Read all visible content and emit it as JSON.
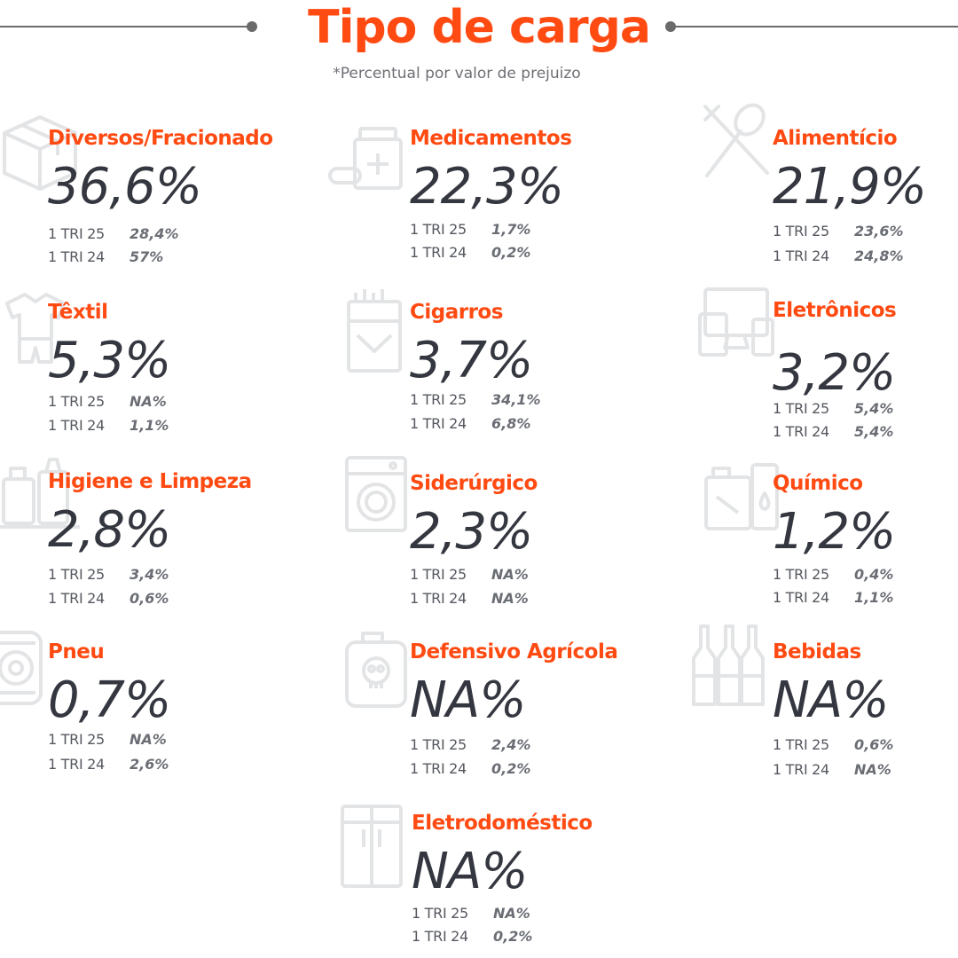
{
  "header": {
    "title": "Tipo de carga",
    "subtitle": "*Percentual por valor de prejuizo"
  },
  "colors": {
    "accent": "#ff4a12",
    "value": "#34373f",
    "muted": "#6d6f75",
    "icon": "#e3e4e6"
  },
  "categories": [
    {
      "name": "Diversos/Fracionado",
      "value": "36,6%",
      "row1_label": "1 TRI 25",
      "row1_value": "28,4%",
      "row2_label": "1 TRI 24",
      "row2_value": "57%",
      "icon": "box-icon"
    },
    {
      "name": "Medicamentos",
      "value": "22,3%",
      "row1_label": "1 TRI 25",
      "row1_value": "1,7%",
      "row2_label": "1 TRI 24",
      "row2_value": "0,2%",
      "icon": "medicine-icon"
    },
    {
      "name": "Alimentício",
      "value": "21,9%",
      "row1_label": "1 TRI 25",
      "row1_value": "23,6%",
      "row2_label": "1 TRI 24",
      "row2_value": "24,8%",
      "icon": "cutlery-icon"
    },
    {
      "name": "Têxtil",
      "value": "5,3%",
      "row1_label": "1 TRI 25",
      "row1_value": "NA%",
      "row2_label": "1 TRI 24",
      "row2_value": "1,1%",
      "icon": "clothes-icon"
    },
    {
      "name": "Cigarros",
      "value": "3,7%",
      "row1_label": "1 TRI 25",
      "row1_value": "34,1%",
      "row2_label": "1 TRI 24",
      "row2_value": "6,8%",
      "icon": "cigarette-pack-icon"
    },
    {
      "name": "Eletrônicos",
      "value": "3,2%",
      "row1_label": "1 TRI 25",
      "row1_value": "5,4%",
      "row2_label": "1 TRI 24",
      "row2_value": "5,4%",
      "icon": "devices-icon"
    },
    {
      "name": "Higiene e Limpeza",
      "value": "2,8%",
      "row1_label": "1 TRI 25",
      "row1_value": "3,4%",
      "row2_label": "1 TRI 24",
      "row2_value": "0,6%",
      "icon": "cleaning-bottles-icon"
    },
    {
      "name": "Siderúrgico",
      "value": "2,3%",
      "row1_label": "1 TRI 25",
      "row1_value": "NA%",
      "row2_label": "1 TRI 24",
      "row2_value": "NA%",
      "icon": "washing-machine-icon"
    },
    {
      "name": "Químico",
      "value": "1,2%",
      "row1_label": "1 TRI 25",
      "row1_value": "0,4%",
      "row2_label": "1 TRI 24",
      "row2_value": "1,1%",
      "icon": "chemical-containers-icon"
    },
    {
      "name": "Pneu",
      "value": "0,7%",
      "row1_label": "1 TRI 25",
      "row1_value": "NA%",
      "row2_label": "1 TRI 24",
      "row2_value": "2,6%",
      "icon": "tire-icon"
    },
    {
      "name": "Defensivo Agrícola",
      "value": "NA%",
      "row1_label": "1 TRI 25",
      "row1_value": "2,4%",
      "row2_label": "1 TRI 24",
      "row2_value": "0,2%",
      "icon": "skull-canister-icon"
    },
    {
      "name": "Bebidas",
      "value": "NA%",
      "row1_label": "1 TRI 25",
      "row1_value": "0,6%",
      "row2_label": "1 TRI 24",
      "row2_value": "NA%",
      "icon": "bottles-icon"
    },
    {
      "name": "Eletrodoméstico",
      "value": "NA%",
      "row1_label": "1 TRI 25",
      "row1_value": "NA%",
      "row2_label": "1 TRI 24",
      "row2_value": "0,2%",
      "icon": "refrigerator-icon"
    }
  ]
}
